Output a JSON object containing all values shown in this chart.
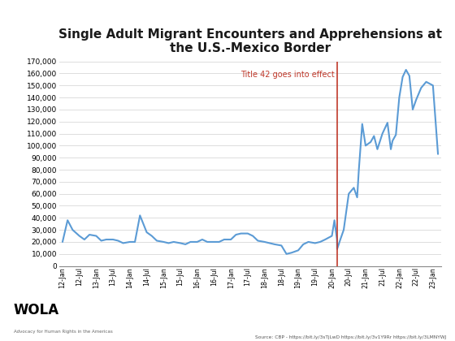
{
  "title": "Single Adult Migrant Encounters and Apprehensions at\nthe U.S.-Mexico Border",
  "title_fontsize": 11,
  "line_color": "#5b9bd5",
  "line_width": 1.5,
  "vline_color": "#c0392b",
  "vline_label": "Title 42 goes into effect",
  "vline_label_color": "#c0392b",
  "background_color": "#ffffff",
  "grid_color": "#d8d8d8",
  "source_text": "Source: CBP - https://bit.ly/3sTjLwD https://bit.ly/3v1Y9Rr https://bit.ly/3LMNYWJ",
  "ylim": [
    0,
    170000
  ],
  "yticks": [
    0,
    10000,
    20000,
    30000,
    40000,
    50000,
    60000,
    70000,
    80000,
    90000,
    100000,
    110000,
    120000,
    130000,
    140000,
    150000,
    160000,
    170000
  ],
  "x_labels": [
    "12-Jan",
    "12-Jul",
    "13-Jan",
    "13-Jul",
    "14-Jan",
    "14-Jul",
    "15-Jan",
    "15-Jul",
    "16-Jan",
    "16-Jul",
    "17-Jan",
    "17-Jul",
    "18-Jan",
    "18-Jul",
    "19-Jan",
    "19-Jul",
    "20-Jan",
    "20-Jul",
    "21-Jan",
    "21-Jul",
    "22-Jan",
    "22-Jul",
    "23-Jan"
  ],
  "note": "x positions: 0=12-Jan, 1=12-Jul, 2=13-Jan ... 16=20-Jan, 17=20-Jul ... 22=23-Jan. vline at ~16.3 (just after 20-Jan, ~March 2020)",
  "vline_x": 16.3,
  "data_points": [
    [
      0,
      20000
    ],
    [
      0.3,
      38000
    ],
    [
      0.6,
      30000
    ],
    [
      1,
      25000
    ],
    [
      1.3,
      22000
    ],
    [
      1.6,
      26000
    ],
    [
      2,
      25000
    ],
    [
      2.3,
      21000
    ],
    [
      2.6,
      22000
    ],
    [
      3,
      22000
    ],
    [
      3.3,
      21000
    ],
    [
      3.6,
      19000
    ],
    [
      4,
      20000
    ],
    [
      4.3,
      20000
    ],
    [
      4.6,
      42000
    ],
    [
      5,
      28000
    ],
    [
      5.3,
      25000
    ],
    [
      5.6,
      21000
    ],
    [
      6,
      20000
    ],
    [
      6.3,
      19000
    ],
    [
      6.6,
      20000
    ],
    [
      7,
      19000
    ],
    [
      7.3,
      18000
    ],
    [
      7.6,
      20000
    ],
    [
      8,
      20000
    ],
    [
      8.3,
      22000
    ],
    [
      8.6,
      20000
    ],
    [
      9,
      20000
    ],
    [
      9.3,
      20000
    ],
    [
      9.6,
      22000
    ],
    [
      10,
      22000
    ],
    [
      10.3,
      26000
    ],
    [
      10.6,
      27000
    ],
    [
      11,
      27000
    ],
    [
      11.3,
      25000
    ],
    [
      11.6,
      21000
    ],
    [
      12,
      20000
    ],
    [
      12.3,
      19000
    ],
    [
      12.6,
      18000
    ],
    [
      13,
      17000
    ],
    [
      13.3,
      10000
    ],
    [
      13.6,
      11000
    ],
    [
      14,
      13000
    ],
    [
      14.3,
      18000
    ],
    [
      14.6,
      20000
    ],
    [
      15,
      19000
    ],
    [
      15.3,
      20000
    ],
    [
      15.6,
      22000
    ],
    [
      16,
      25000
    ],
    [
      16.15,
      38000
    ],
    [
      16.3,
      22000
    ],
    [
      16.31,
      14000
    ],
    [
      16.5,
      22000
    ],
    [
      16.7,
      30000
    ],
    [
      17,
      60000
    ],
    [
      17.3,
      65000
    ],
    [
      17.5,
      57000
    ],
    [
      17.6,
      80000
    ],
    [
      17.8,
      118000
    ],
    [
      18,
      100000
    ],
    [
      18.3,
      103000
    ],
    [
      18.5,
      108000
    ],
    [
      18.7,
      97000
    ],
    [
      19,
      110000
    ],
    [
      19.3,
      119000
    ],
    [
      19.5,
      97000
    ],
    [
      19.6,
      104000
    ],
    [
      19.8,
      109000
    ],
    [
      20,
      140000
    ],
    [
      20.2,
      157000
    ],
    [
      20.4,
      163000
    ],
    [
      20.6,
      158000
    ],
    [
      20.8,
      130000
    ],
    [
      21,
      138000
    ],
    [
      21.3,
      148000
    ],
    [
      21.6,
      153000
    ],
    [
      22,
      150000
    ],
    [
      22.3,
      93000
    ]
  ]
}
